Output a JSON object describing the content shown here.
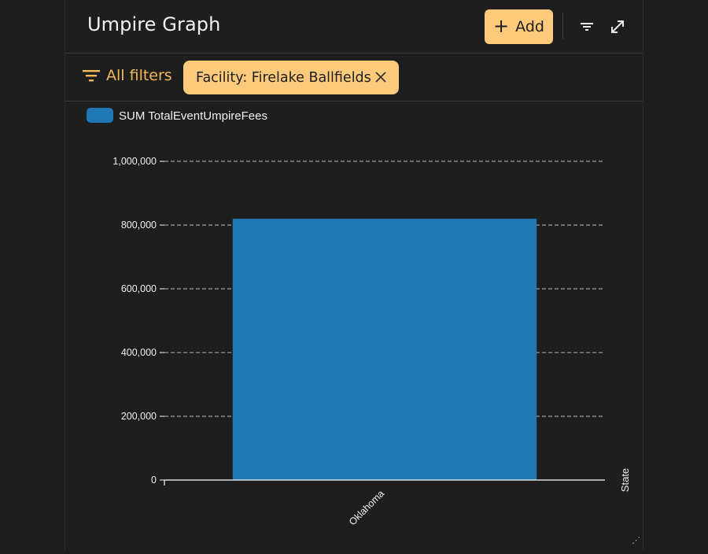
{
  "header": {
    "title": "Umpire Graph",
    "add_label": "Add",
    "filter_icon": "filter-icon",
    "expand_icon": "expand-icon"
  },
  "filters": {
    "all_filters_label": "All filters",
    "chip_label": "Facility: Firelake Ballfields"
  },
  "colors": {
    "accent": "#fdc97a",
    "accent_text": "#f4b95a",
    "bar": "#1f77b4",
    "background": "#1e1e1e"
  },
  "chart_data": {
    "type": "bar",
    "legend": "SUM TotalEventUmpireFees",
    "legend_position": "top-left",
    "categories": [
      "Oklahoma"
    ],
    "series": [
      {
        "name": "SUM TotalEventUmpireFees",
        "values": [
          820000
        ]
      }
    ],
    "xlabel": "State",
    "ylabel": "",
    "ylim": [
      0,
      1000000
    ],
    "yticks": [
      0,
      200000,
      400000,
      600000,
      800000,
      1000000
    ],
    "ytick_labels": [
      "0",
      "200,000",
      "400,000",
      "600,000",
      "800,000",
      "1,000,000"
    ],
    "grid": true
  }
}
